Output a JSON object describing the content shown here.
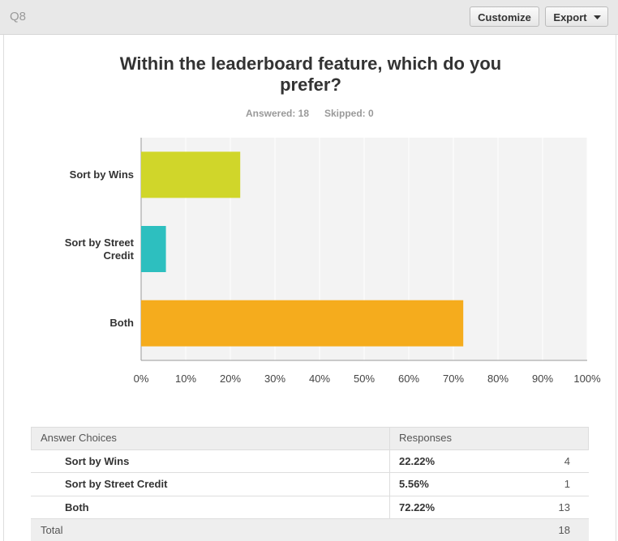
{
  "header": {
    "question": "Q8",
    "buttons": [
      "Customize",
      "Export"
    ]
  },
  "chart_data": {
    "type": "hbar",
    "title": "Within the leaderboard feature, which do you prefer?",
    "subtitle": [
      "Answered: 18",
      "Skipped: 0"
    ],
    "categories": [
      "Sort by Wins",
      "Sort by Street Credit",
      "Both"
    ],
    "values": [
      22.22,
      5.56,
      72.22
    ],
    "colors": [
      "#d0d62a",
      "#2dbfbf",
      "#f5ac1d"
    ],
    "xlim": [
      0,
      100
    ],
    "xticks": [
      {
        "value": 0,
        "label": "0%"
      },
      {
        "value": 10,
        "label": "10%"
      },
      {
        "value": 20,
        "label": "20%"
      },
      {
        "value": 30,
        "label": "30%"
      },
      {
        "value": 40,
        "label": "40%"
      },
      {
        "value": 50,
        "label": "50%"
      },
      {
        "value": 60,
        "label": "60%"
      },
      {
        "value": 70,
        "label": "70%"
      },
      {
        "value": 80,
        "label": "80%"
      },
      {
        "value": 90,
        "label": "90%"
      },
      {
        "value": 100,
        "label": "100%"
      }
    ],
    "grid": true
  },
  "table": {
    "columns": [
      "Answer Choices",
      "Responses"
    ],
    "rows": [
      [
        "Sort by Wins",
        "22.22%",
        4
      ],
      [
        "Sort by Street Credit",
        "5.56%",
        1
      ],
      [
        "Both",
        "72.22%",
        13
      ]
    ],
    "total": [
      "Total",
      18
    ]
  }
}
